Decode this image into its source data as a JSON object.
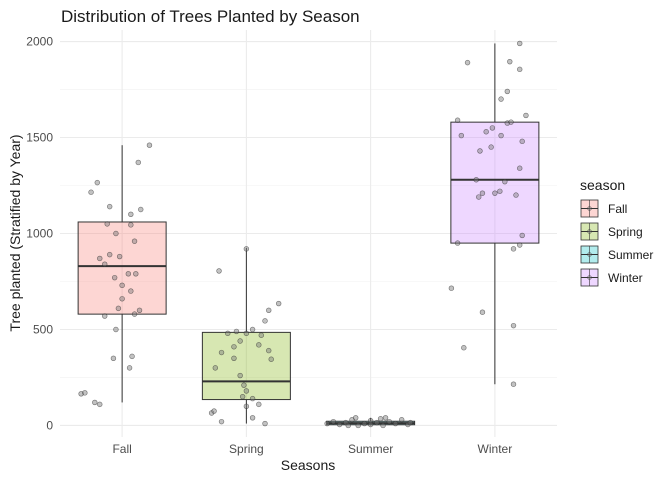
{
  "chart_data": {
    "type": "boxplot",
    "title": "Distribution of Trees Planted by Season",
    "xlabel": "Seasons",
    "ylabel": "Tree planted (Stratified by Year)",
    "ylim": [
      -60,
      2060
    ],
    "yticks": [
      0,
      500,
      1000,
      1500,
      2000
    ],
    "grid": true,
    "legend": {
      "title": "season",
      "position": "right"
    },
    "categories": [
      "Fall",
      "Spring",
      "Summer",
      "Winter"
    ],
    "colors": {
      "Fall": "#F8766D",
      "Spring": "#7CAE00",
      "Summer": "#00BFC4",
      "Winter": "#C77CFF"
    },
    "boxes": [
      {
        "name": "Fall",
        "min": 120,
        "q1": 580,
        "median": 830,
        "q3": 1060,
        "max": 1460
      },
      {
        "name": "Spring",
        "min": 10,
        "q1": 135,
        "median": 230,
        "q3": 485,
        "max": 925
      },
      {
        "name": "Summer",
        "min": 0,
        "q1": 4,
        "median": 12,
        "q3": 22,
        "max": 40
      },
      {
        "name": "Winter",
        "min": 215,
        "q1": 950,
        "median": 1280,
        "q3": 1580,
        "max": 1990
      }
    ],
    "points": {
      "Fall": [
        [
          -0.33,
          165
        ],
        [
          -0.3,
          170
        ],
        [
          -0.18,
          110
        ],
        [
          -0.22,
          120
        ],
        [
          -0.25,
          1215
        ],
        [
          -0.2,
          1265
        ],
        [
          -0.1,
          1140
        ],
        [
          0.07,
          1100
        ],
        [
          0.15,
          1125
        ],
        [
          0.13,
          1370
        ],
        [
          0.22,
          1460
        ],
        [
          0.07,
          1045
        ],
        [
          0.1,
          960
        ],
        [
          -0.12,
          1050
        ],
        [
          -0.05,
          1000
        ],
        [
          -0.1,
          890
        ],
        [
          -0.18,
          870
        ],
        [
          -0.14,
          840
        ],
        [
          -0.02,
          880
        ],
        [
          0.05,
          790
        ],
        [
          0.0,
          730
        ],
        [
          -0.06,
          770
        ],
        [
          0.11,
          790
        ],
        [
          0.07,
          700
        ],
        [
          0.0,
          660
        ],
        [
          -0.03,
          610
        ],
        [
          0.14,
          600
        ],
        [
          0.1,
          580
        ],
        [
          -0.14,
          570
        ],
        [
          -0.05,
          500
        ],
        [
          -0.07,
          350
        ],
        [
          0.08,
          360
        ],
        [
          0.06,
          300
        ]
      ],
      "Spring": [
        [
          -0.22,
          805
        ],
        [
          -0.15,
          480
        ],
        [
          -0.08,
          490
        ],
        [
          -0.05,
          440
        ],
        [
          -0.1,
          410
        ],
        [
          -0.2,
          380
        ],
        [
          -0.1,
          350
        ],
        [
          -0.25,
          300
        ],
        [
          0.0,
          480
        ],
        [
          0.05,
          500
        ],
        [
          0.15,
          545
        ],
        [
          0.12,
          470
        ],
        [
          0.18,
          600
        ],
        [
          0.26,
          635
        ],
        [
          0.0,
          920
        ],
        [
          0.1,
          420
        ],
        [
          0.18,
          390
        ],
        [
          0.2,
          345
        ],
        [
          -0.05,
          260
        ],
        [
          -0.02,
          210
        ],
        [
          0.0,
          180
        ],
        [
          -0.03,
          150
        ],
        [
          0.05,
          140
        ],
        [
          0.1,
          110
        ],
        [
          0.0,
          100
        ],
        [
          -0.28,
          65
        ],
        [
          -0.26,
          75
        ],
        [
          -0.2,
          20
        ],
        [
          0.15,
          10
        ],
        [
          0.05,
          40
        ]
      ],
      "Summer": [
        [
          -0.35,
          10
        ],
        [
          -0.3,
          20
        ],
        [
          -0.25,
          5
        ],
        [
          -0.2,
          15
        ],
        [
          -0.15,
          30
        ],
        [
          -0.12,
          40
        ],
        [
          -0.1,
          0
        ],
        [
          -0.05,
          10
        ],
        [
          0.0,
          25
        ],
        [
          0.0,
          5
        ],
        [
          0.05,
          15
        ],
        [
          0.08,
          35
        ],
        [
          0.1,
          0
        ],
        [
          0.15,
          20
        ],
        [
          0.2,
          10
        ],
        [
          0.25,
          30
        ],
        [
          0.3,
          5
        ],
        [
          0.32,
          15
        ],
        [
          -0.18,
          0
        ],
        [
          0.12,
          40
        ]
      ],
      "Winter": [
        [
          0.2,
          1990
        ],
        [
          0.12,
          1895
        ],
        [
          -0.22,
          1890
        ],
        [
          0.2,
          1855
        ],
        [
          0.1,
          1740
        ],
        [
          0.05,
          1700
        ],
        [
          0.25,
          1615
        ],
        [
          -0.3,
          1590
        ],
        [
          -0.02,
          1550
        ],
        [
          0.1,
          1575
        ],
        [
          0.13,
          1580
        ],
        [
          -0.07,
          1530
        ],
        [
          0.05,
          1510
        ],
        [
          -0.27,
          1510
        ],
        [
          0.22,
          1480
        ],
        [
          -0.03,
          1450
        ],
        [
          -0.12,
          1430
        ],
        [
          0.2,
          1340
        ],
        [
          -0.15,
          1280
        ],
        [
          0.08,
          1270
        ],
        [
          0.04,
          1220
        ],
        [
          0.0,
          1210
        ],
        [
          0.17,
          1200
        ],
        [
          -0.13,
          1190
        ],
        [
          -0.1,
          1210
        ],
        [
          0.22,
          990
        ],
        [
          0.2,
          940
        ],
        [
          0.15,
          920
        ],
        [
          -0.3,
          950
        ],
        [
          -0.35,
          715
        ],
        [
          -0.1,
          590
        ],
        [
          0.15,
          520
        ],
        [
          -0.25,
          405
        ],
        [
          0.15,
          215
        ]
      ]
    }
  }
}
